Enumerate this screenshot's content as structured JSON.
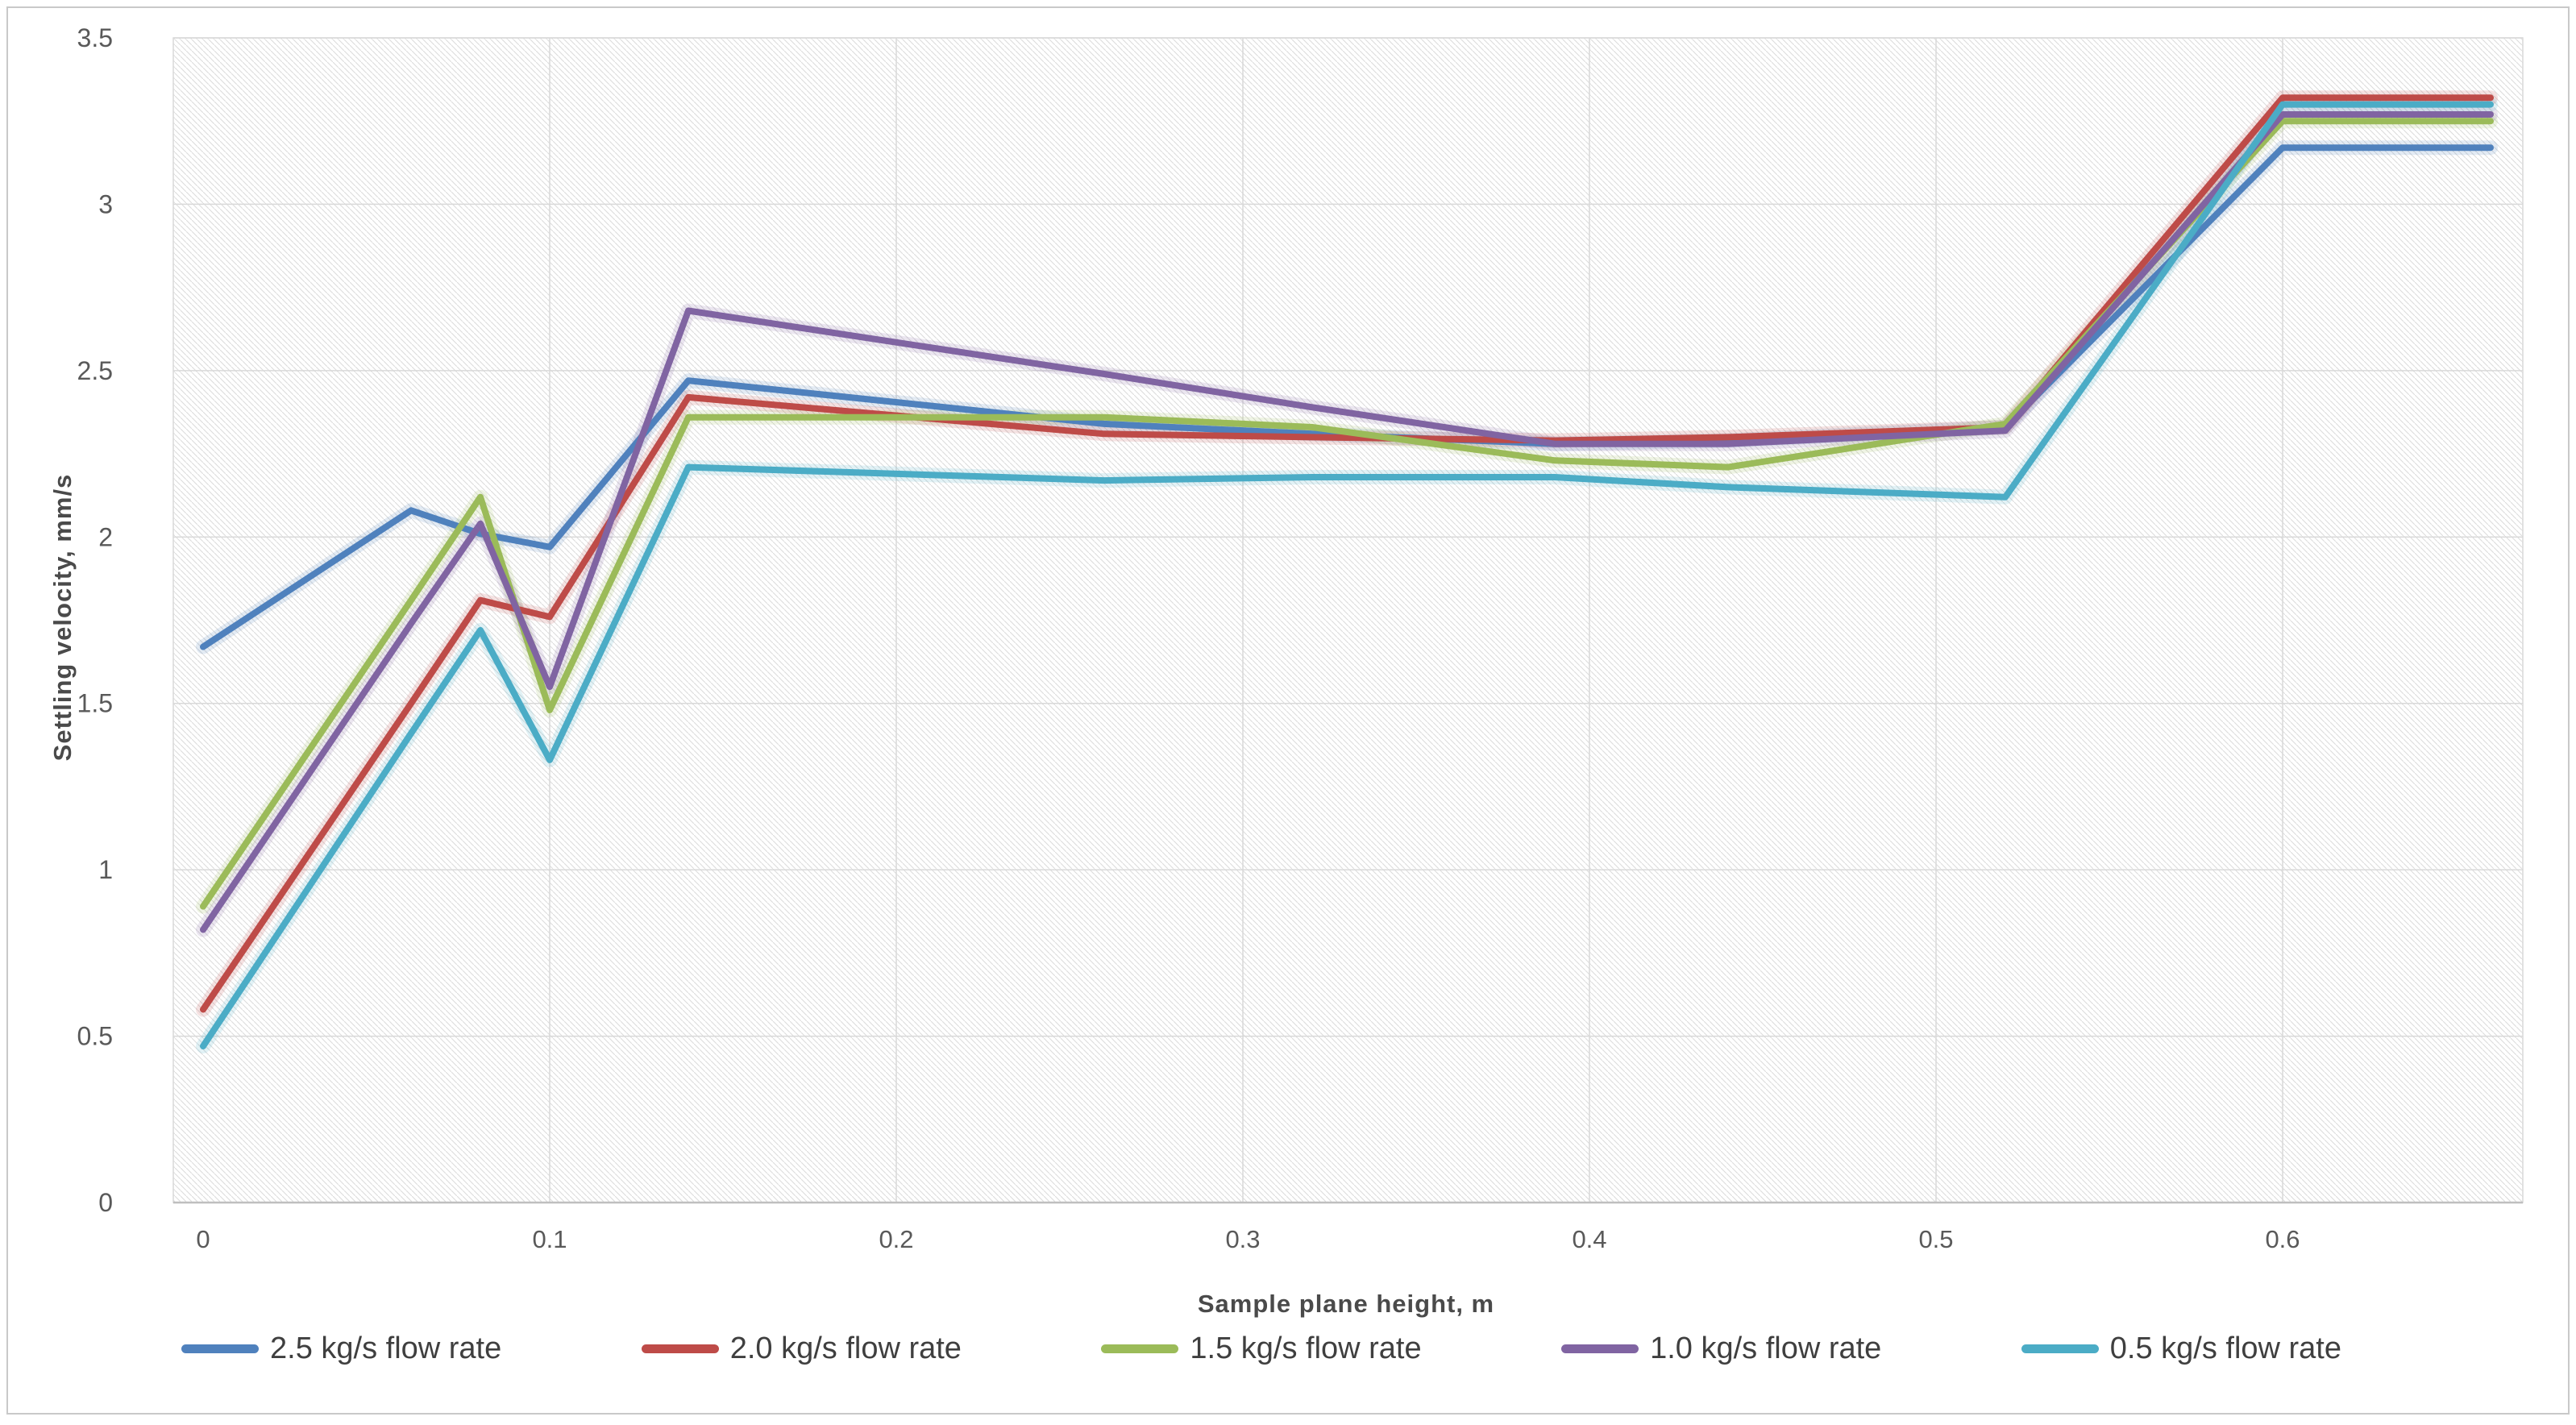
{
  "chart_data": {
    "type": "line",
    "title": "",
    "xlabel": "Sample plane height, m",
    "ylabel": "Settling velocity, mm/s",
    "xlim": [
      0,
      0.669
    ],
    "ylim": [
      0,
      3.5
    ],
    "x_ticks": [
      0,
      0.1,
      0.2,
      0.3,
      0.4,
      0.5,
      0.6
    ],
    "y_ticks": [
      0,
      0.5,
      1,
      1.5,
      2,
      2.5,
      3,
      3.5
    ],
    "grid": true,
    "legend_position": "bottom",
    "plot_background": "diagonal-hatch",
    "colors": {
      "gridline": "#d9d9d9",
      "hatch": "#dcdcdc",
      "axis_line": "#bfbfbf",
      "tick_text": "#595959",
      "legend_text": "#3f3f3f"
    },
    "x": [
      0,
      0.06,
      0.08,
      0.1,
      0.14,
      0.26,
      0.32,
      0.39,
      0.44,
      0.52,
      0.6,
      0.66
    ],
    "series": [
      {
        "name": "2.5 kg/s flow rate",
        "color": "#4F81BD",
        "values": [
          1.67,
          2.08,
          2.01,
          1.97,
          2.47,
          2.34,
          2.31,
          2.28,
          2.29,
          2.33,
          3.17,
          3.17
        ]
      },
      {
        "name": "2.0 kg/s flow rate",
        "color": "#BE4B48",
        "values": [
          0.58,
          1.5,
          1.81,
          1.76,
          2.42,
          2.31,
          2.3,
          2.29,
          2.3,
          2.33,
          3.32,
          3.32
        ]
      },
      {
        "name": "1.5 kg/s flow rate",
        "color": "#9BBB59",
        "values": [
          0.89,
          1.81,
          2.12,
          1.48,
          2.36,
          2.36,
          2.33,
          2.23,
          2.21,
          2.34,
          3.25,
          3.25
        ]
      },
      {
        "name": "1.0 kg/s flow rate",
        "color": "#8064A2",
        "values": [
          0.82,
          1.74,
          2.04,
          1.55,
          2.68,
          2.49,
          2.39,
          2.28,
          2.28,
          2.32,
          3.27,
          3.27
        ]
      },
      {
        "name": "0.5 kg/s flow rate",
        "color": "#4BACC6",
        "values": [
          0.47,
          1.41,
          1.72,
          1.33,
          2.21,
          2.17,
          2.18,
          2.18,
          2.15,
          2.12,
          3.3,
          3.3
        ]
      }
    ]
  }
}
